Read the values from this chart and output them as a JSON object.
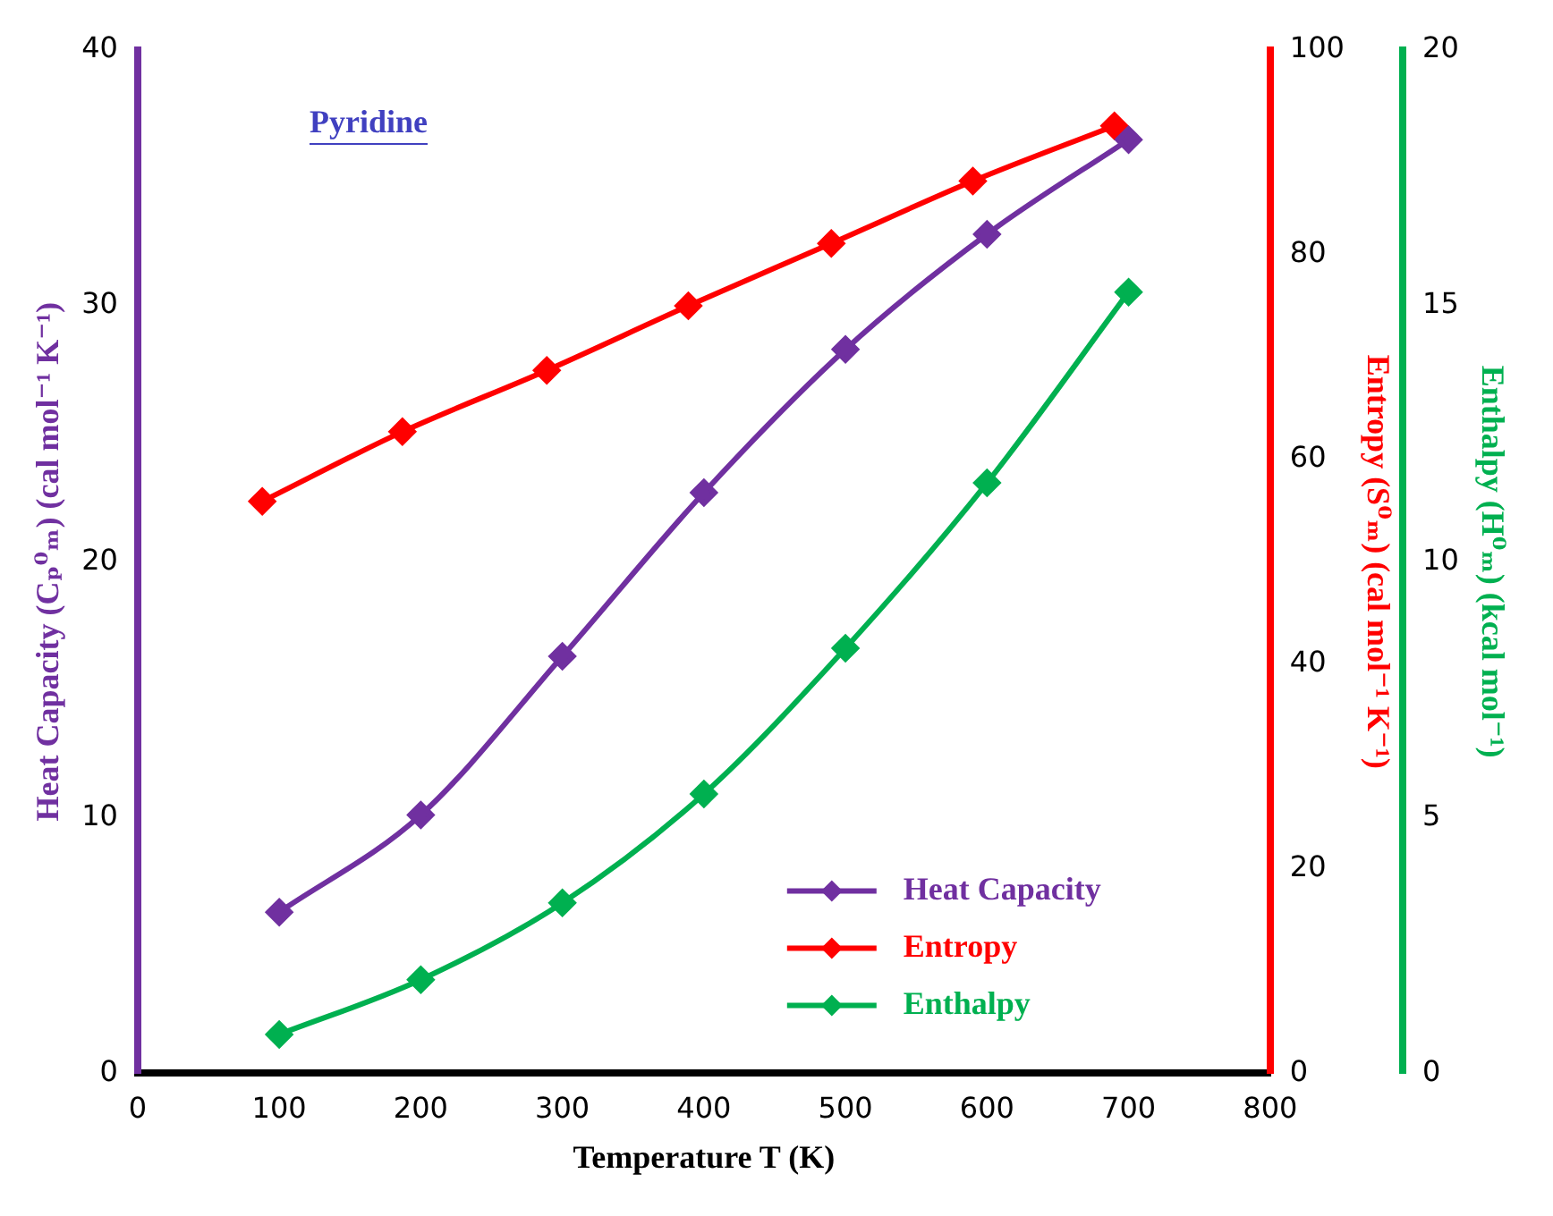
{
  "chart_data": {
    "type": "line",
    "title": "Pyridine",
    "xlabel": "Temperature T (K)",
    "ylabel": "Heat Capacity (Cₚ⁰ₘ) (cal mol⁻¹ K⁻¹)",
    "y2label": "Entropy (S⁰ₘ) (cal mol⁻¹ K⁻¹)",
    "y3label": "Enthalpy (H⁰ₘ) (kcal mol⁻¹)",
    "x": [
      100,
      200,
      300,
      400,
      500,
      600,
      700
    ],
    "series": [
      {
        "name": "Heat Capacity",
        "color": "#7030a0",
        "values": [
          6.3,
          10.1,
          16.3,
          22.7,
          28.3,
          32.8,
          36.5
        ]
      },
      {
        "name": "Entropy",
        "color": "#ff0000",
        "axis": "y2",
        "x": [
          88,
          187,
          289,
          389,
          490,
          590,
          690
        ],
        "values": [
          55.9,
          62.7,
          68.7,
          75.0,
          81.1,
          87.2,
          92.6
        ]
      },
      {
        "name": "Enthalpy",
        "color": "#00b050",
        "axis": "y3",
        "values": [
          0.76,
          1.83,
          3.33,
          5.46,
          8.31,
          11.54,
          15.27
        ]
      }
    ],
    "xlim": [
      0,
      800
    ],
    "xticks": [
      0,
      100,
      200,
      300,
      400,
      500,
      600,
      700,
      800
    ],
    "ylim": [
      0,
      40
    ],
    "yticks": [
      0,
      10,
      20,
      30,
      40
    ],
    "y2lim": [
      0,
      100
    ],
    "y2ticks": [
      0,
      20,
      40,
      60,
      80,
      100
    ],
    "y3lim": [
      0,
      20
    ],
    "y3ticks": [
      0,
      5,
      10,
      15,
      20
    ],
    "grid": false,
    "legend": "bottom right",
    "marker": "diamond",
    "line_style": "solid"
  }
}
